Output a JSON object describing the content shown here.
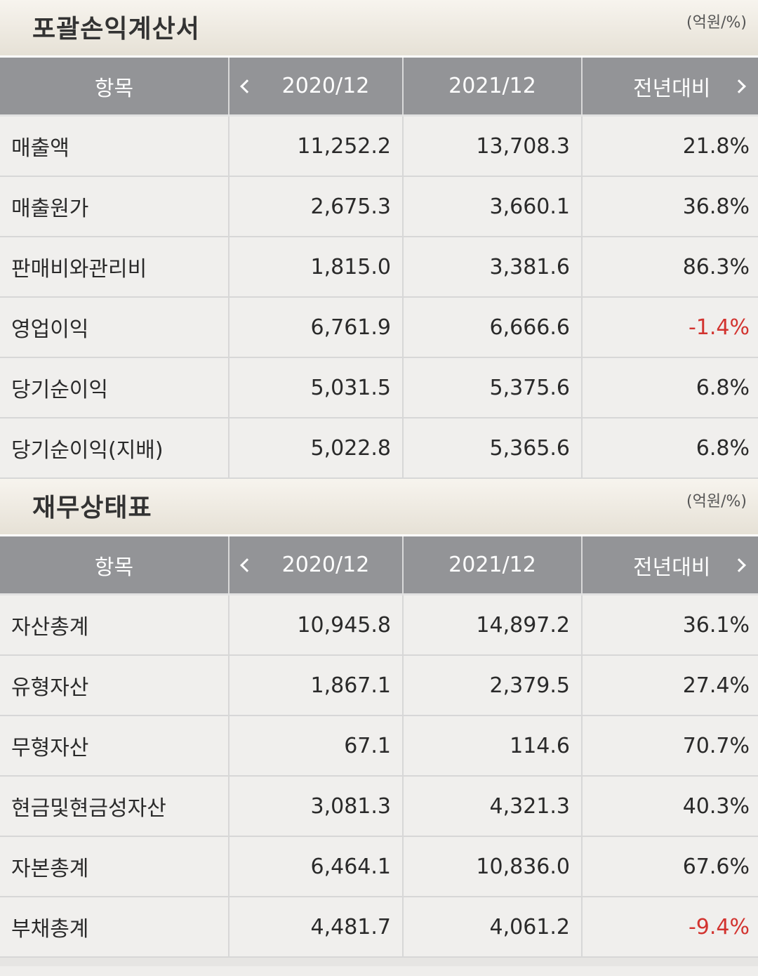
{
  "income": {
    "title": "포괄손익계산서",
    "unit": "(억원/%)",
    "headers": [
      "항목",
      "2020/12",
      "2021/12",
      "전년대비"
    ],
    "rows": [
      {
        "label": "매출액",
        "y2020": "11,252.2",
        "y2021": "13,708.3",
        "yoy": "21.8%"
      },
      {
        "label": "매출원가",
        "y2020": "2,675.3",
        "y2021": "3,660.1",
        "yoy": "36.8%"
      },
      {
        "label": "판매비와관리비",
        "y2020": "1,815.0",
        "y2021": "3,381.6",
        "yoy": "86.3%"
      },
      {
        "label": "영업이익",
        "y2020": "6,761.9",
        "y2021": "6,666.6",
        "yoy": "-1.4%"
      },
      {
        "label": "당기순이익",
        "y2020": "5,031.5",
        "y2021": "5,375.6",
        "yoy": "6.8%"
      },
      {
        "label": "당기순이익(지배)",
        "y2020": "5,022.8",
        "y2021": "5,365.6",
        "yoy": "6.8%"
      }
    ]
  },
  "balance": {
    "title": "재무상태표",
    "unit": "(억원/%)",
    "headers": [
      "항목",
      "2020/12",
      "2021/12",
      "전년대비"
    ],
    "rows": [
      {
        "label": "자산총계",
        "y2020": "10,945.8",
        "y2021": "14,897.2",
        "yoy": "36.1%"
      },
      {
        "label": "유형자산",
        "y2020": "1,867.1",
        "y2021": "2,379.5",
        "yoy": "27.4%"
      },
      {
        "label": "무형자산",
        "y2020": "67.1",
        "y2021": "114.6",
        "yoy": "70.7%"
      },
      {
        "label": "현금및현금성자산",
        "y2020": "3,081.3",
        "y2021": "4,321.3",
        "yoy": "40.3%"
      },
      {
        "label": "자본총계",
        "y2020": "6,464.1",
        "y2021": "10,836.0",
        "yoy": "67.6%"
      },
      {
        "label": "부채총계",
        "y2020": "4,481.7",
        "y2021": "4,061.2",
        "yoy": "-9.4%"
      }
    ]
  },
  "colors": {
    "negative": "#d2332f",
    "header_bg": "#939497",
    "row_bg": "#f0efed"
  },
  "icons": {
    "prev": "chevron-left-icon",
    "next": "chevron-right-icon"
  }
}
